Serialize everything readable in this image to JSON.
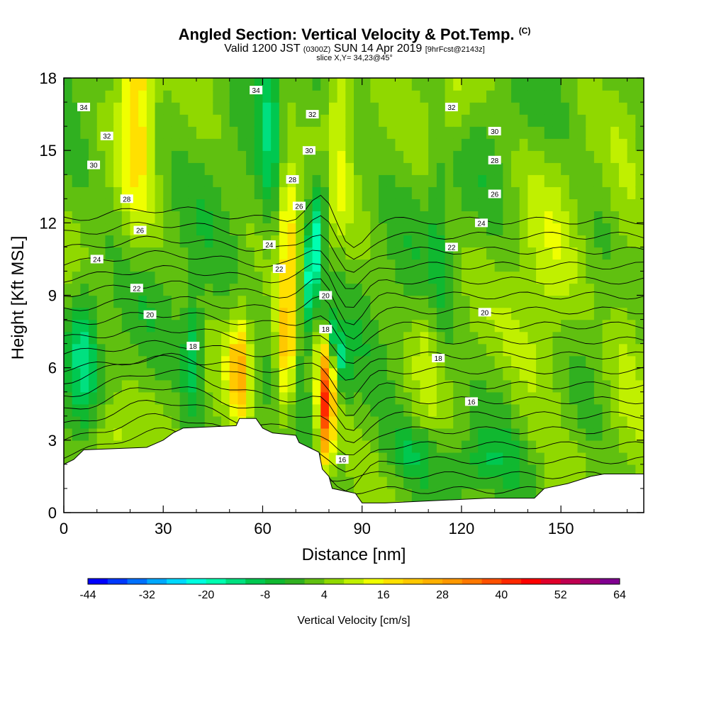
{
  "header": {
    "title": "Angled Section: Vertical Velocity & Pot.Temp.",
    "title_suffix": "(C)",
    "valid_a": "Valid 1200 JST",
    "valid_b": "(0300Z)",
    "valid_c": "SUN 14 Apr 2019",
    "valid_d": "[9hrFcst@2143z]",
    "slice": "slice X,Y= 34,23@45°"
  },
  "chart_data": {
    "type": "heatmap",
    "xlabel": "Distance [nm]",
    "ylabel": "Height [Kft MSL]",
    "xlim": [
      0,
      175
    ],
    "ylim": [
      0,
      18
    ],
    "xticks": [
      0,
      30,
      60,
      90,
      120,
      150
    ],
    "yticks": [
      0,
      3,
      6,
      9,
      12,
      15,
      18
    ],
    "colorbar": {
      "label": "Vertical Velocity [cm/s]",
      "ticks": [
        -44,
        -32,
        -20,
        -8,
        4,
        16,
        28,
        40,
        52,
        64
      ],
      "range": [
        -44,
        64
      ],
      "step": 4,
      "colors": [
        "#0000ff",
        "#0038ff",
        "#0070ff",
        "#00a8ff",
        "#00d8ff",
        "#00ffe0",
        "#00ffb0",
        "#00e080",
        "#00c850",
        "#10b830",
        "#30b020",
        "#60c010",
        "#90d800",
        "#c0f000",
        "#f0ff00",
        "#ffe000",
        "#ffc800",
        "#ffb000",
        "#ff9800",
        "#ff7800",
        "#ff5000",
        "#ff2800",
        "#ff0000",
        "#e0002a",
        "#c00050",
        "#a00070",
        "#800090"
      ]
    },
    "terrain_profile": [
      [
        0,
        2.0
      ],
      [
        3,
        2.2
      ],
      [
        6,
        2.6
      ],
      [
        25,
        2.7
      ],
      [
        30,
        3.0
      ],
      [
        33,
        3.3
      ],
      [
        36,
        3.5
      ],
      [
        52,
        3.6
      ],
      [
        53,
        3.9
      ],
      [
        58,
        3.9
      ],
      [
        60,
        3.5
      ],
      [
        63,
        3.3
      ],
      [
        70,
        3.2
      ],
      [
        71,
        2.9
      ],
      [
        74,
        2.7
      ],
      [
        77,
        2.5
      ],
      [
        78,
        1.8
      ],
      [
        80,
        1.5
      ],
      [
        81,
        1.0
      ],
      [
        88,
        0.8
      ],
      [
        90,
        0.4
      ],
      [
        97,
        0.4
      ],
      [
        128,
        0.6
      ],
      [
        142,
        0.6
      ],
      [
        145,
        1.0
      ],
      [
        152,
        1.2
      ],
      [
        159,
        1.5
      ],
      [
        163,
        1.6
      ],
      [
        175,
        1.6
      ]
    ],
    "isentrope_labels": [
      {
        "text": "34",
        "x": 6,
        "y": 16.8
      },
      {
        "text": "34",
        "x": 58,
        "y": 17.5
      },
      {
        "text": "32",
        "x": 13,
        "y": 15.6
      },
      {
        "text": "32",
        "x": 75,
        "y": 16.5
      },
      {
        "text": "32",
        "x": 117,
        "y": 16.8
      },
      {
        "text": "30",
        "x": 9,
        "y": 14.4
      },
      {
        "text": "30",
        "x": 74,
        "y": 15.0
      },
      {
        "text": "30",
        "x": 130,
        "y": 15.8
      },
      {
        "text": "28",
        "x": 19,
        "y": 13.0
      },
      {
        "text": "28",
        "x": 69,
        "y": 13.8
      },
      {
        "text": "28",
        "x": 130,
        "y": 14.6
      },
      {
        "text": "26",
        "x": 23,
        "y": 11.7
      },
      {
        "text": "26",
        "x": 71,
        "y": 12.7
      },
      {
        "text": "26",
        "x": 130,
        "y": 13.2
      },
      {
        "text": "24",
        "x": 10,
        "y": 10.5
      },
      {
        "text": "24",
        "x": 62,
        "y": 11.1
      },
      {
        "text": "24",
        "x": 126,
        "y": 12.0
      },
      {
        "text": "22",
        "x": 22,
        "y": 9.3
      },
      {
        "text": "22",
        "x": 65,
        "y": 10.1
      },
      {
        "text": "22",
        "x": 117,
        "y": 11.0
      },
      {
        "text": "20",
        "x": 26,
        "y": 8.2
      },
      {
        "text": "20",
        "x": 79,
        "y": 9.0
      },
      {
        "text": "20",
        "x": 127,
        "y": 8.3
      },
      {
        "text": "18",
        "x": 39,
        "y": 6.9
      },
      {
        "text": "18",
        "x": 79,
        "y": 7.6
      },
      {
        "text": "18",
        "x": 113,
        "y": 6.4
      },
      {
        "text": "16",
        "x": 123,
        "y": 4.6
      },
      {
        "text": "16",
        "x": 84,
        "y": 2.2
      }
    ]
  }
}
